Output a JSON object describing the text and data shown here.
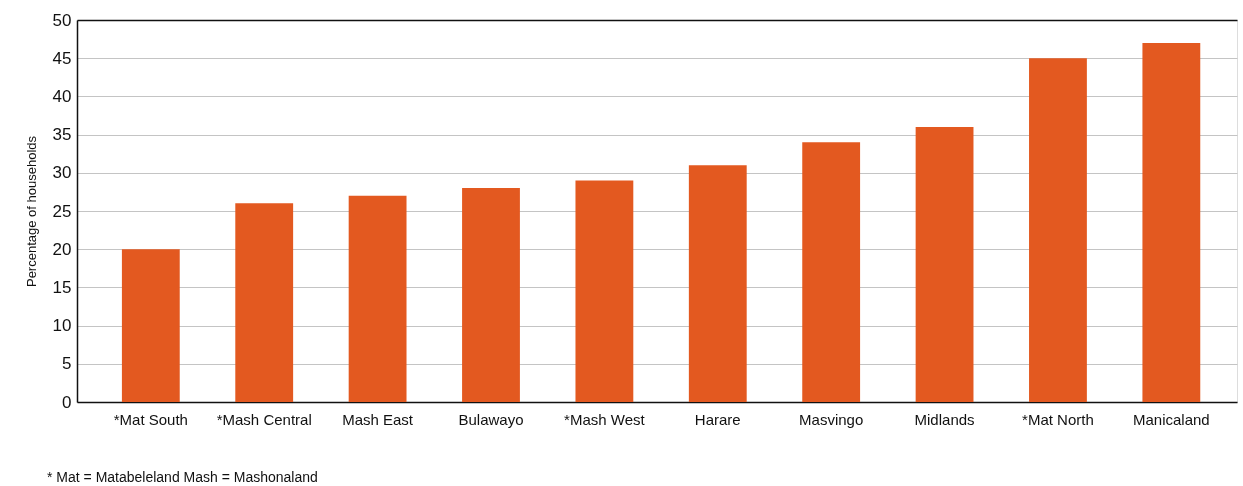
{
  "chart_data": {
    "type": "bar",
    "ylabel": "Percentage of households",
    "categories": [
      "*Mat South",
      "*Mash Central",
      "Mash East",
      "Bulawayo",
      "*Mash West",
      "Harare",
      "Masvingo",
      "Midlands",
      "*Mat North",
      "Manicaland"
    ],
    "values": [
      20,
      26,
      27,
      28,
      29,
      31,
      34,
      36,
      45,
      47
    ],
    "color": "#e35920",
    "ylim": [
      0,
      50
    ],
    "yticks": [
      0,
      5,
      10,
      15,
      20,
      25,
      30,
      35,
      40,
      45,
      50
    ],
    "grid": "y",
    "annotations": [
      "* Mat = Matabeleland Mash = Mashonaland"
    ]
  }
}
